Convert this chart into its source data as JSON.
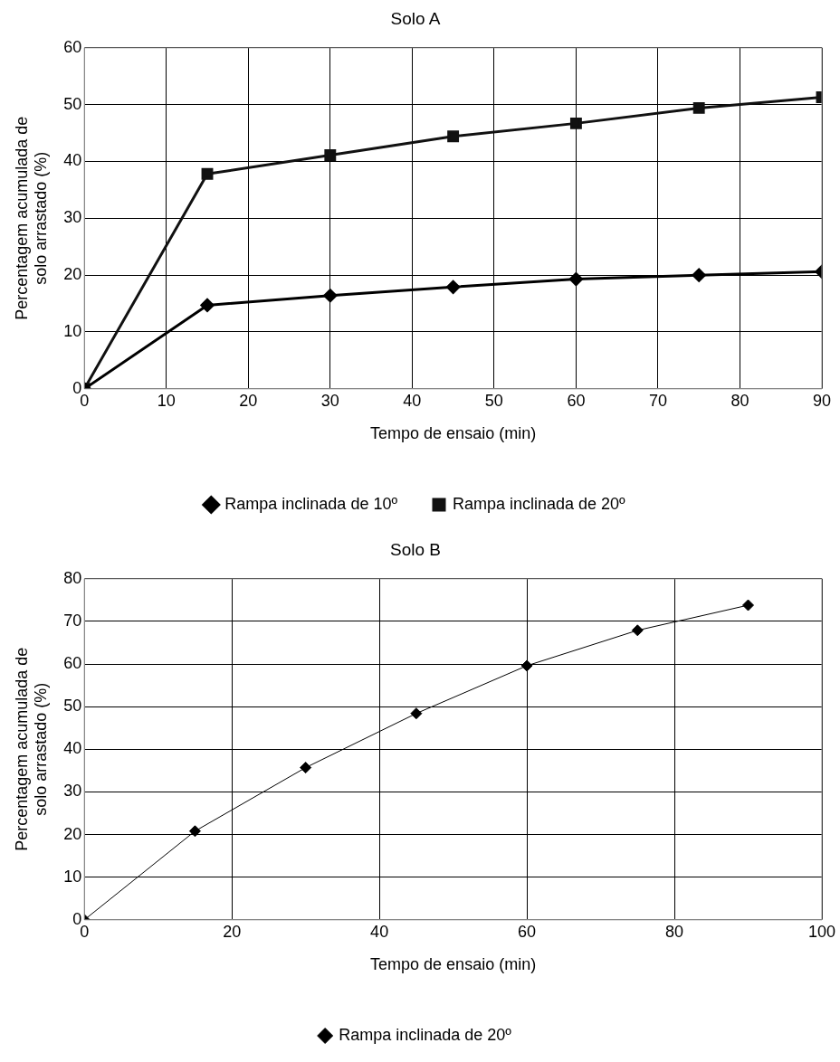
{
  "chart_data": [
    {
      "type": "line",
      "title": "Solo A",
      "xlabel": "Tempo de ensaio (min)",
      "ylabel": "Percentagem acumulada de\nsolo arrastado (%)",
      "x": [
        0,
        15,
        30,
        45,
        60,
        75,
        90
      ],
      "series": [
        {
          "name": "Rampa inclinada de 10º",
          "color": "#000000",
          "marker": "diamond",
          "values": [
            0,
            14.7,
            16.4,
            17.9,
            19.3,
            20,
            20.6
          ]
        },
        {
          "name": "Rampa inclinada de 20º",
          "color": "#111111",
          "marker": "square",
          "values": [
            0,
            37.8,
            41.1,
            44.4,
            46.7,
            49.4,
            51.3
          ]
        }
      ],
      "xlim": [
        0,
        90
      ],
      "xticks": [
        0,
        10,
        20,
        30,
        40,
        50,
        60,
        70,
        80,
        90
      ],
      "ylim": [
        0,
        60
      ],
      "yticks": [
        0,
        10,
        20,
        30,
        40,
        50,
        60
      ],
      "grid": true,
      "legend": "bottom",
      "line_style": "solid"
    },
    {
      "type": "line",
      "title": "Solo B",
      "xlabel": "Tempo de ensaio (min)",
      "ylabel": "Percentagem acumulada de\nsolo arrastado (%)",
      "x": [
        0,
        15,
        30,
        45,
        60,
        75,
        90
      ],
      "series": [
        {
          "name": "Rampa inclinada de 20º",
          "color": "#000000",
          "marker": "diamond",
          "values": [
            0,
            20.8,
            35.7,
            48.4,
            59.6,
            67.9,
            73.8
          ]
        }
      ],
      "xlim": [
        0,
        100
      ],
      "xticks": [
        0,
        20,
        40,
        60,
        80,
        100
      ],
      "ylim": [
        0,
        80
      ],
      "yticks": [
        0,
        10,
        20,
        30,
        40,
        50,
        60,
        70,
        80
      ],
      "grid": true,
      "legend": "bottom",
      "line_style": "solid"
    }
  ]
}
